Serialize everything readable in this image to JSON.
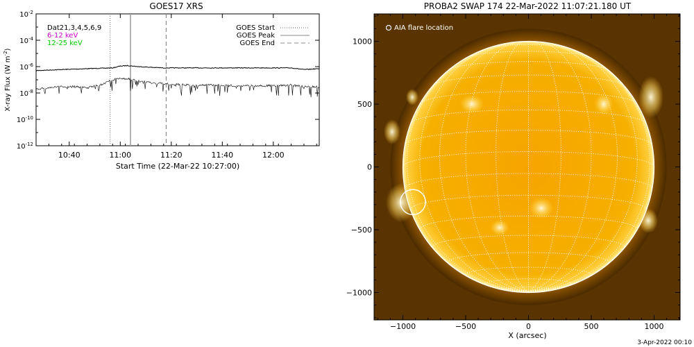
{
  "footer_date": "3-Apr-2022 00:10",
  "chart_data": [
    {
      "type": "line",
      "title": "GOES17 XRS",
      "xlabel": "Start Time (22-Mar-22 10:27:00)",
      "ylabel": "X-ray Flux (W m",
      "ylabel_sup": "-2",
      "ylabel_end": ")",
      "y_scale": "log",
      "ylim": [
        1e-12,
        0.01
      ],
      "xlim_minutes": [
        0,
        111
      ],
      "x_ticks": [
        {
          "label": "10:40",
          "minute": 13
        },
        {
          "label": "11:00",
          "minute": 33
        },
        {
          "label": "11:20",
          "minute": 53
        },
        {
          "label": "11:40",
          "minute": 73
        },
        {
          "label": "12:00",
          "minute": 93
        }
      ],
      "y_ticks": [
        {
          "base": "10",
          "exp": "-2",
          "value": 0.01
        },
        {
          "base": "10",
          "exp": "-4",
          "value": 0.0001
        },
        {
          "base": "10",
          "exp": "-6",
          "value": 1e-06
        },
        {
          "base": "10",
          "exp": "-8",
          "value": 1e-08
        },
        {
          "base": "10",
          "exp": "-10",
          "value": 1e-10
        },
        {
          "base": "10",
          "exp": "-12",
          "value": 1e-12
        }
      ],
      "datasets_label": "Dat21,3,4,5,6,9",
      "series": [
        {
          "name": "6-12 keV",
          "color": "#cc00cc",
          "x": [
            0,
            10,
            20,
            30,
            33,
            36,
            40,
            50,
            60,
            70,
            80,
            90,
            100,
            105,
            111
          ],
          "y": [
            5e-07,
            6e-07,
            7e-07,
            8e-07,
            1.1e-06,
            1.2e-06,
            1e-06,
            8e-07,
            8e-07,
            8e-07,
            8e-07,
            8e-07,
            8e-07,
            6e-07,
            7e-07
          ]
        },
        {
          "name": "12-25 keV",
          "color": "#00cc00",
          "x": [
            0,
            5,
            10,
            15,
            20,
            25,
            30,
            33,
            36,
            40,
            45,
            50,
            60,
            70,
            80,
            90,
            100,
            105,
            111
          ],
          "y": [
            2e-08,
            2.5e-08,
            3e-08,
            3e-08,
            2.5e-08,
            4e-08,
            1e-07,
            1.3e-07,
            1.2e-07,
            8e-08,
            6e-08,
            5e-08,
            4e-08,
            4e-08,
            3.5e-08,
            3.5e-08,
            4e-08,
            3e-08,
            3e-08
          ]
        }
      ],
      "event_markers": [
        {
          "name": "GOES Start",
          "minute": 29,
          "style": "dotted"
        },
        {
          "name": "GOES Peak",
          "minute": 37,
          "style": "solid"
        },
        {
          "name": "GOES End",
          "minute": 51,
          "style": "dashed"
        }
      ],
      "legend_position": "top-right",
      "grid": false
    },
    {
      "type": "image",
      "title": "PROBA2 SWAP 174 22-Mar-2022 11:07:21.180 UT",
      "xlabel": "X (arcsec)",
      "annotation": "AIA flare location",
      "xlim": [
        -1200,
        1200
      ],
      "ylim": [
        -1200,
        1200
      ],
      "x_ticks": [
        -1000,
        -500,
        0,
        500,
        1000
      ],
      "y_ticks": [
        1000,
        500,
        0,
        -500,
        -1000
      ],
      "x_tick_labels": [
        "−1000",
        "−500",
        "0",
        "500",
        "1000"
      ],
      "y_tick_labels": [
        "1000",
        "500",
        "0",
        "−500",
        "−1000"
      ],
      "solar_radius_arcsec": 1000,
      "flare_location": {
        "x": -920,
        "y": -280,
        "radius_arcsec": 100
      },
      "grid_color": "#ffffff",
      "disk_color": "#f0a800",
      "grid": true
    }
  ]
}
